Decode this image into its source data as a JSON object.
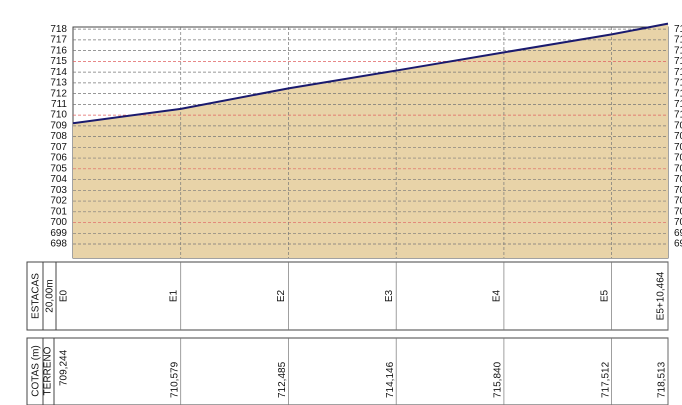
{
  "chart_data": {
    "type": "area",
    "x": [
      0,
      20,
      40,
      60,
      80,
      100,
      110.464
    ],
    "xlim": [
      0,
      110.464
    ],
    "station_labels": [
      "E0",
      "E1",
      "E2",
      "E3",
      "E4",
      "E5",
      "E5+10,464"
    ],
    "station_header": "ESTACAS",
    "station_spacing": "20,00m",
    "elevation_header": "COTAS (m)",
    "elevation_subheader": "TERRENO",
    "series": [
      {
        "color": "#1a1a6e",
        "values": [
          709.244,
          710.579,
          712.485,
          714.146,
          715.84,
          717.512,
          718.513
        ],
        "value_labels": [
          "709,244",
          "710,579",
          "712,485",
          "714,146",
          "715,840",
          "717,512",
          "718,513"
        ]
      }
    ],
    "fill": "#e8d3a8",
    "ylim": [
      696.7,
      718.2
    ],
    "yticks": [
      698,
      699,
      700,
      701,
      702,
      703,
      704,
      705,
      706,
      707,
      708,
      709,
      710,
      711,
      712,
      713,
      714,
      715,
      716,
      717,
      718
    ],
    "grid": true
  }
}
